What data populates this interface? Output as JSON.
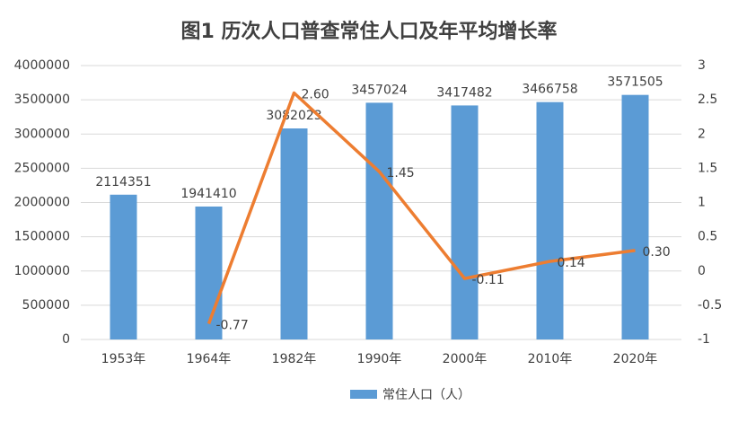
{
  "chart_data": {
    "type": "bar_line",
    "title": "图1  历次人口普查常住人口及年平均增长率",
    "categories": [
      "1953年",
      "1964年",
      "1982年",
      "1990年",
      "2000年",
      "2010年",
      "2020年"
    ],
    "series": [
      {
        "name": "常住人口（人）",
        "type": "bar",
        "color": "#5b9bd5",
        "values": [
          2114351,
          1941410,
          3082023,
          3457024,
          3417482,
          3466758,
          3571505
        ]
      },
      {
        "type": "line",
        "axis": "y2",
        "color": "#ed7d31",
        "values": [
          null,
          -0.77,
          2.6,
          1.45,
          -0.11,
          0.14,
          0.3
        ],
        "value_labels": [
          null,
          "-0.77",
          "2.60",
          "1.45",
          "-0.11",
          "0.14",
          "0.30"
        ]
      }
    ],
    "ylim": [
      0,
      4000000
    ],
    "yticks": [
      0,
      500000,
      1000000,
      1500000,
      2000000,
      2500000,
      3000000,
      3500000,
      4000000
    ],
    "y2lim": [
      -1,
      3
    ],
    "y2ticks": [
      -1,
      -0.5,
      0,
      0.5,
      1,
      1.5,
      2,
      2.5,
      3
    ],
    "grid": true,
    "legend": "bottom"
  }
}
